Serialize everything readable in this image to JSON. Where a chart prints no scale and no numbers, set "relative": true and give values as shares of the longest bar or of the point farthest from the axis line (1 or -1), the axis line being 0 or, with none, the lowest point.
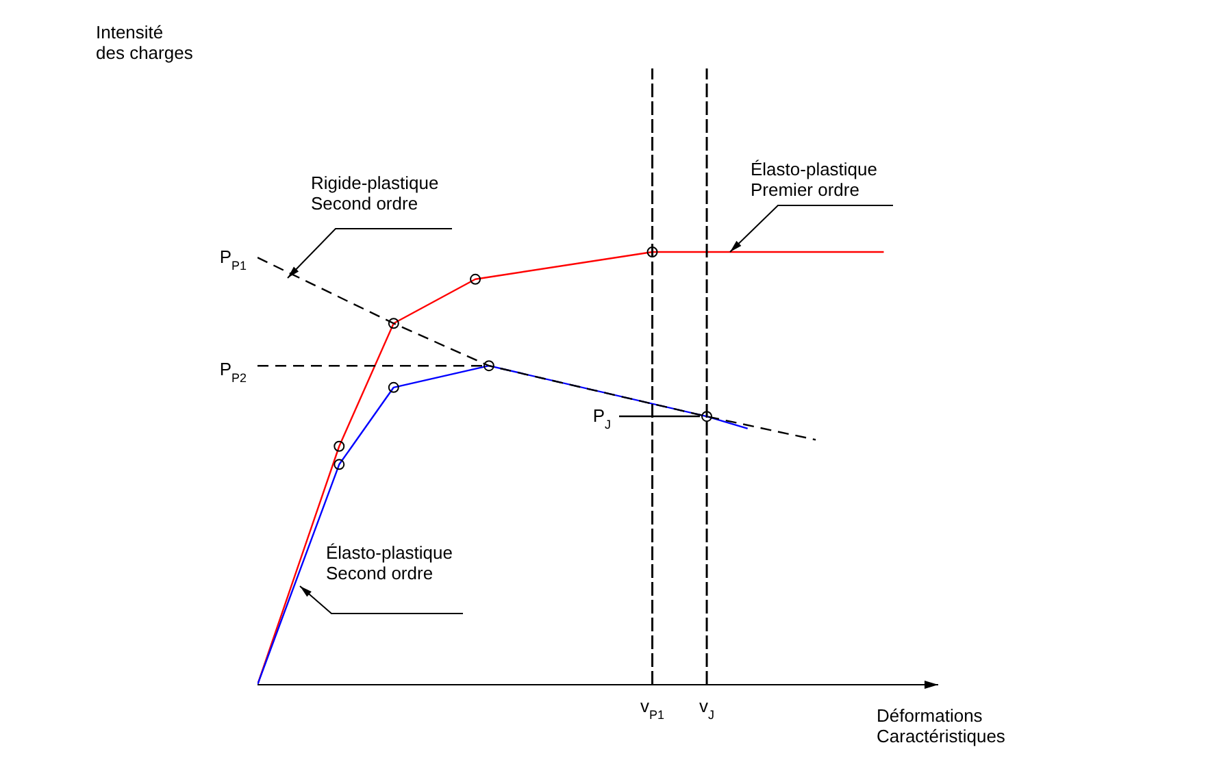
{
  "chart_data": {
    "type": "line",
    "relative": true,
    "xlabel": "Déformations\nCaractéristiques",
    "grid": false,
    "categories": [
      null,
      null,
      null,
      null,
      null,
      null,
      null,
      null,
      null,
      null,
      null,
      null,
      null,
      null,
      null,
      null,
      null,
      null,
      null,
      null,
      null,
      null,
      null,
      null,
      null,
      null,
      null,
      null,
      null,
      "v$_{P1}$",
      null,
      null,
      null,
      "v$_{J}$",
      null,
      null,
      null,
      null,
      null,
      null,
      null,
      null,
      null,
      null,
      null,
      null,
      null
    ],
    "series": [
      {
        "name": "Élasto-plastique\nPremier ordre",
        "color": "#ff0000",
        "line_style": "solid",
        "values": [
          0,
          null,
          null,
          null,
          null,
          null,
          0.551,
          null,
          null,
          null,
          0.835,
          null,
          null,
          null,
          null,
          null,
          0.937,
          null,
          null,
          null,
          null,
          null,
          null,
          null,
          null,
          null,
          null,
          null,
          null,
          1.0,
          null,
          null,
          null,
          null,
          null,
          null,
          null,
          null,
          null,
          null,
          null,
          null,
          null,
          null,
          null,
          null,
          1.0
        ]
      },
      {
        "name": "Élasto-plastique\nSecond ordre",
        "color": "#0000ff",
        "line_style": "solid",
        "values": [
          0,
          null,
          null,
          null,
          null,
          null,
          0.509,
          null,
          null,
          null,
          0.687,
          null,
          null,
          null,
          null,
          null,
          null,
          0.737,
          null,
          null,
          null,
          null,
          null,
          null,
          null,
          null,
          null,
          null,
          null,
          null,
          null,
          null,
          null,
          0.62,
          null,
          null,
          0.592,
          null,
          null,
          null,
          null,
          null,
          null,
          null,
          null,
          null,
          null
        ]
      },
      {
        "name": "Rigide-plastique\nSecond ordre",
        "color": "#000000",
        "line_style": "dashed",
        "values": [
          0.987,
          null,
          null,
          null,
          null,
          null,
          null,
          null,
          null,
          null,
          0.835,
          null,
          null,
          null,
          null,
          null,
          null,
          0.737,
          null,
          null,
          null,
          null,
          null,
          null,
          null,
          null,
          0.671,
          null,
          null,
          null,
          null,
          null,
          null,
          0.62,
          null,
          null,
          null,
          null,
          null,
          null,
          null,
          0.566,
          null,
          null,
          null,
          null,
          null
        ]
      },
      {
        "type": "line",
        "color": "#000000",
        "line_style": "dashed",
        "values": [
          0.737,
          null,
          null,
          null,
          null,
          null,
          null,
          null,
          null,
          null,
          null,
          null,
          null,
          null,
          null,
          null,
          null,
          0.737,
          null,
          null,
          null,
          null,
          null,
          null,
          null,
          null,
          null,
          null,
          null,
          null,
          null,
          null,
          null,
          null,
          null,
          null,
          null,
          null,
          null,
          null,
          null,
          null,
          null,
          null,
          null,
          null,
          null
        ]
      },
      {
        "type": "scatter",
        "color": "#000000",
        "marker": "circle",
        "values": [
          null,
          null,
          null,
          null,
          null,
          null,
          0.551,
          null,
          null,
          null,
          0.835,
          null,
          null,
          null,
          null,
          null,
          0.937,
          null,
          null,
          null,
          null,
          null,
          null,
          null,
          null,
          null,
          null,
          null,
          null,
          1.0,
          null,
          null,
          null,
          null,
          null,
          null,
          null,
          null,
          null,
          null,
          null,
          null,
          null,
          null,
          null,
          null,
          null
        ]
      },
      {
        "type": "scatter",
        "color": "#000000",
        "marker": "circle",
        "values": [
          null,
          null,
          null,
          null,
          null,
          null,
          0.509,
          null,
          null,
          null,
          0.687,
          null,
          null,
          null,
          null,
          null,
          null,
          0.737,
          null,
          null,
          null,
          null,
          null,
          null,
          null,
          null,
          null,
          null,
          null,
          null,
          null,
          null,
          null,
          0.62,
          null,
          null,
          null,
          null,
          null,
          null,
          null,
          null,
          null,
          null,
          null,
          null,
          null
        ]
      }
    ],
    "ref_lines": [
      {
        "axis": "x",
        "value": "v$_{P1}$",
        "color": "#000000",
        "line_style": "dashed"
      },
      {
        "axis": "x",
        "value": "v$_{J}$",
        "color": "#000000",
        "line_style": "dashed"
      }
    ],
    "annotations": [
      "Intensité\ndes charges",
      "P$_{P1}$",
      "P$_{P2}$",
      "P$_{J}$"
    ]
  }
}
